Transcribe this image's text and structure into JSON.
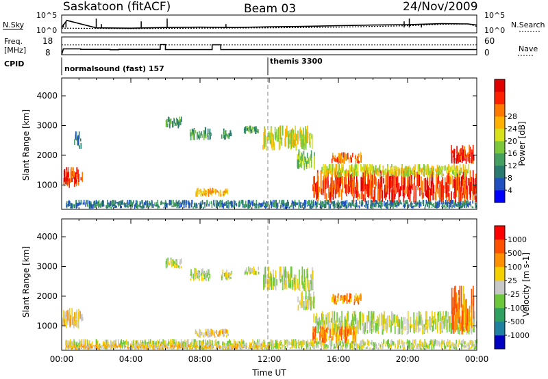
{
  "header": {
    "station": "Saskatoon (fitACF)",
    "beam": "Beam 03",
    "date": "24/Nov/2009"
  },
  "top_panels": {
    "nsky_label": "N.Sky",
    "nsearch_label": "N.Search",
    "freq_label_line1": "Freq.",
    "freq_label_line2": "[MHz]",
    "nave_label": "Nave",
    "cpid_label": "CPID",
    "nsky_ticks": [
      "10^5",
      "10^0"
    ],
    "freq_ticks": [
      "18",
      "8"
    ],
    "nave_ticks": [
      "60",
      "0"
    ]
  },
  "cpid": {
    "programs": [
      {
        "label": "normalsound (fast) 157",
        "start_hour": 0,
        "end_hour": 12
      },
      {
        "label": "themis 3300",
        "start_hour": 12,
        "end_hour": 24
      }
    ]
  },
  "chart_data": [
    {
      "type": "line",
      "panel": "noise",
      "series": [
        {
          "name": "N.Sky",
          "x": [
            0,
            0.3,
            2,
            4,
            6,
            8,
            10,
            12,
            14,
            16,
            18,
            20,
            22,
            23.5,
            24
          ],
          "y": [
            1.5,
            3.5,
            1.4,
            1.3,
            1.5,
            1.6,
            1.5,
            1.7,
            1.8,
            2.0,
            2.2,
            2.3,
            2.6,
            2.5,
            2.2
          ]
        },
        {
          "name": "N.Search",
          "x": [
            0,
            4,
            8,
            12,
            16,
            20,
            22,
            23.5,
            24
          ],
          "y": [
            1.3,
            1.2,
            1.3,
            1.4,
            1.6,
            2.0,
            2.4,
            2.5,
            1.8
          ]
        }
      ],
      "ylim": [
        0,
        5
      ],
      "xlim": [
        0,
        24
      ]
    },
    {
      "type": "line",
      "panel": "frequency",
      "series": [
        {
          "name": "Freq.",
          "x": [
            0,
            0.1,
            1.1,
            1.1,
            1.5,
            2.8,
            2.8,
            3.3,
            3.3,
            5.7,
            5.7,
            6.0,
            6.0,
            8.7,
            8.7,
            9.2,
            9.2,
            24
          ],
          "y": [
            8,
            11.3,
            11.3,
            11.0,
            11.0,
            11.0,
            10.8,
            10.8,
            11.0,
            11.0,
            13.8,
            13.8,
            10.9,
            10.9,
            13.6,
            13.6,
            10.9,
            10.9
          ]
        },
        {
          "name": "Nave",
          "x": [
            0,
            24
          ],
          "y": [
            33,
            33
          ]
        }
      ],
      "freq_ylim": [
        8,
        18
      ],
      "nave_ylim": [
        0,
        60
      ],
      "xlim": [
        0,
        24
      ]
    },
    {
      "type": "heatmap",
      "panel": "power",
      "title": "",
      "xlabel": "",
      "ylabel": "Slant Range [km]",
      "xlim": [
        0,
        24
      ],
      "ylim": [
        180,
        4600
      ],
      "yticks": [
        "1000",
        "2000",
        "3000",
        "4000"
      ],
      "colorbar": {
        "label": "Power [dB]",
        "ticks": [
          "4",
          "8",
          "12",
          "16",
          "20",
          "24",
          "28"
        ],
        "colors": [
          "#0000ff",
          "#2050c0",
          "#2a7a70",
          "#45a060",
          "#7cc83a",
          "#d7e21a",
          "#ffb000",
          "#ff7800",
          "#ff2000",
          "#e00000"
        ]
      },
      "regions": [
        {
          "x0": 0.0,
          "x1": 1.2,
          "y0": 900,
          "y1": 1600,
          "level": 8
        },
        {
          "x0": 0.7,
          "x1": 1.1,
          "y0": 2200,
          "y1": 2800,
          "level": 2
        },
        {
          "x0": 0.2,
          "x1": 24.0,
          "y0": 200,
          "y1": 500,
          "level": 2
        },
        {
          "x0": 6.0,
          "x1": 6.9,
          "y0": 2900,
          "y1": 3300,
          "level": 3
        },
        {
          "x0": 7.4,
          "x1": 8.6,
          "y0": 2500,
          "y1": 2950,
          "level": 3
        },
        {
          "x0": 9.2,
          "x1": 9.8,
          "y0": 2500,
          "y1": 2900,
          "level": 3
        },
        {
          "x0": 10.5,
          "x1": 11.4,
          "y0": 2700,
          "y1": 3000,
          "level": 3
        },
        {
          "x0": 7.7,
          "x1": 9.6,
          "y0": 600,
          "y1": 900,
          "level": 6
        },
        {
          "x0": 11.6,
          "x1": 14.5,
          "y0": 2150,
          "y1": 3000,
          "level": 5
        },
        {
          "x0": 13.6,
          "x1": 14.6,
          "y0": 1500,
          "y1": 2200,
          "level": 4
        },
        {
          "x0": 14.5,
          "x1": 24.0,
          "y0": 400,
          "y1": 1500,
          "level": 8
        },
        {
          "x0": 15.0,
          "x1": 23.5,
          "y0": 1250,
          "y1": 1700,
          "level": 5
        },
        {
          "x0": 15.6,
          "x1": 17.3,
          "y0": 1700,
          "y1": 2100,
          "level": 7
        },
        {
          "x0": 22.5,
          "x1": 23.8,
          "y0": 1700,
          "y1": 2350,
          "level": 8
        }
      ]
    },
    {
      "type": "heatmap",
      "panel": "velocity",
      "title": "",
      "xlabel": "Time UT",
      "ylabel": "Slant Range [km]",
      "xlim": [
        0,
        24
      ],
      "ylim": [
        180,
        4600
      ],
      "xticks": [
        "00:00",
        "04:00",
        "08:00",
        "12:00",
        "16:00",
        "20:00",
        "00:00"
      ],
      "yticks": [
        "1000",
        "2000",
        "3000",
        "4000"
      ],
      "colorbar": {
        "label": "Velocity [m s-1]",
        "ticks": [
          "1000",
          "500",
          "100",
          "25",
          "-25",
          "-100",
          "-500",
          "-1000"
        ],
        "colors": [
          "#0000c0",
          "#2080a0",
          "#30a060",
          "#6cc83a",
          "#c8c8c8",
          "#f4d000",
          "#ff9000",
          "#ff5000",
          "#ff0000"
        ]
      },
      "regions": [
        {
          "x0": 0.0,
          "x1": 1.2,
          "y0": 900,
          "y1": 1600,
          "level": 5
        },
        {
          "x0": 0.2,
          "x1": 24.0,
          "y0": 200,
          "y1": 550,
          "level": 4
        },
        {
          "x0": 0.2,
          "x1": 12.0,
          "y0": 200,
          "y1": 400,
          "level": 5
        },
        {
          "x0": 6.0,
          "x1": 6.9,
          "y0": 2900,
          "y1": 3300,
          "level": 4
        },
        {
          "x0": 7.4,
          "x1": 8.6,
          "y0": 2500,
          "y1": 2950,
          "level": 4
        },
        {
          "x0": 9.2,
          "x1": 9.8,
          "y0": 2500,
          "y1": 2900,
          "level": 4
        },
        {
          "x0": 10.5,
          "x1": 11.4,
          "y0": 2700,
          "y1": 3000,
          "level": 4
        },
        {
          "x0": 7.7,
          "x1": 9.6,
          "y0": 600,
          "y1": 900,
          "level": 5
        },
        {
          "x0": 11.6,
          "x1": 14.5,
          "y0": 2150,
          "y1": 3000,
          "level": 4
        },
        {
          "x0": 13.6,
          "x1": 14.6,
          "y0": 1500,
          "y1": 2200,
          "level": 4
        },
        {
          "x0": 14.5,
          "x1": 24.0,
          "y0": 700,
          "y1": 1500,
          "level": 4
        },
        {
          "x0": 14.5,
          "x1": 17.0,
          "y0": 400,
          "y1": 1000,
          "level": 6
        },
        {
          "x0": 15.6,
          "x1": 17.3,
          "y0": 1700,
          "y1": 2100,
          "level": 6
        },
        {
          "x0": 22.5,
          "x1": 23.8,
          "y0": 700,
          "y1": 2350,
          "level": 6
        }
      ]
    }
  ]
}
